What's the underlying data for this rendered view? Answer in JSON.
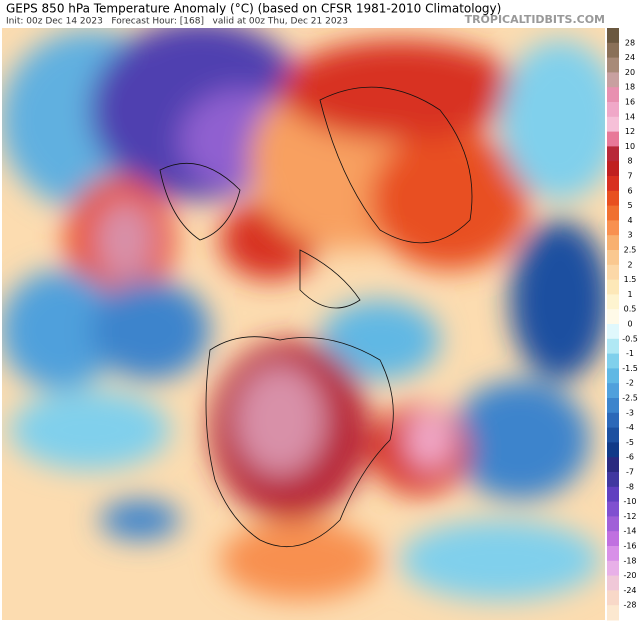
{
  "header": {
    "title": "GEPS 850 hPa Temperature Anomaly (°C) (based on CFSR 1981-2010 Climatology)",
    "subtitle": "Init: 00z Dec 14 2023   Forecast Hour: [168]   valid at 00z Thu, Dec 21 2023",
    "credit": "TROPICALTIDBITS.COM"
  },
  "legend": {
    "labels": [
      28,
      24,
      20,
      18,
      16,
      14,
      12,
      10,
      8,
      7,
      6,
      5,
      4,
      3,
      2.5,
      2,
      1.5,
      1,
      0.5,
      0,
      -0.5,
      -1,
      -1.5,
      -2,
      -2.5,
      -3,
      -4,
      -5,
      -6,
      -7,
      -8,
      -10,
      -12,
      -14,
      -16,
      -18,
      -20,
      -24,
      -28
    ],
    "colors": [
      "#6b5840",
      "#8a7058",
      "#a88a78",
      "#c8a0a0",
      "#e890b0",
      "#f0a8c8",
      "#f6c0d8",
      "#e87898",
      "#b82838",
      "#c02020",
      "#d83020",
      "#e85020",
      "#f07030",
      "#f89050",
      "#f8b070",
      "#fac890",
      "#fcd8a8",
      "#fde8b8",
      "#fef4d0",
      "#fffae8",
      "#e0f8fc",
      "#b0e8f4",
      "#80d0ec",
      "#60b8e4",
      "#50a0dc",
      "#3c84cc",
      "#2c68b8",
      "#1c50a0",
      "#103a88",
      "#2a2a80",
      "#4038a0",
      "#6040c0",
      "#8050d0",
      "#a060d8",
      "#c070e0",
      "#d890e8",
      "#e8b0e8",
      "#f0c8d8",
      "#f8d8c8",
      "#fce8d0"
    ]
  }
}
